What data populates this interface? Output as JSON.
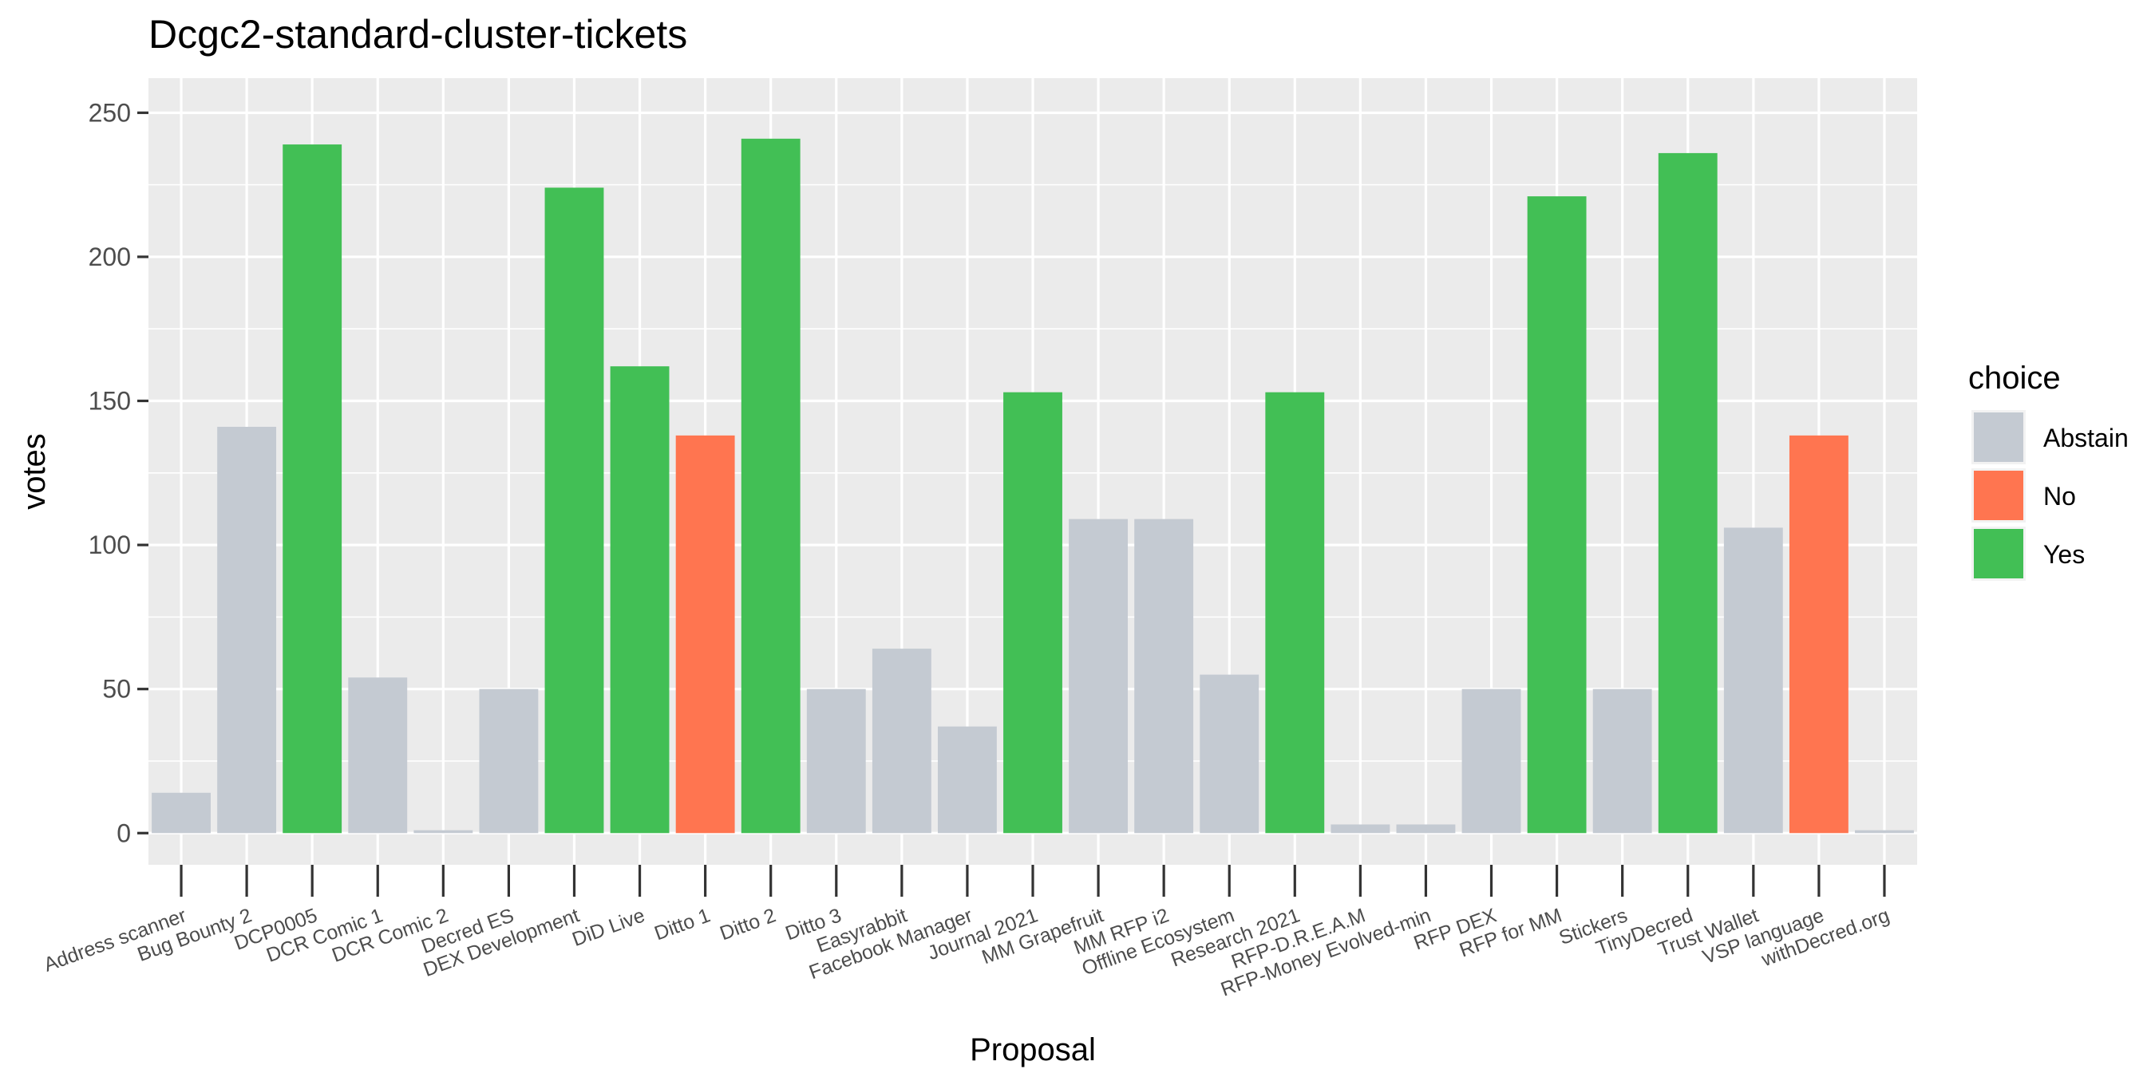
{
  "chart_data": {
    "type": "bar",
    "title": "Dcgc2-standard-cluster-tickets",
    "xlabel": "Proposal",
    "ylabel": "votes",
    "ylim": [
      -11,
      262
    ],
    "yticks": [
      0,
      50,
      100,
      150,
      200,
      250
    ],
    "grid": true,
    "legend": {
      "title": "choice",
      "position": "right",
      "entries": [
        {
          "name": "Abstain",
          "color": "#c4cad2"
        },
        {
          "name": "No",
          "color": "#ff7550"
        },
        {
          "name": "Yes",
          "color": "#42bf55"
        }
      ]
    },
    "bars": [
      {
        "category": "Address scanner",
        "value": 14,
        "choice": "Abstain"
      },
      {
        "category": "Bug Bounty 2",
        "value": 141,
        "choice": "Abstain"
      },
      {
        "category": "DCP0005",
        "value": 239,
        "choice": "Yes"
      },
      {
        "category": "DCR Comic 1",
        "value": 54,
        "choice": "Abstain"
      },
      {
        "category": "DCR Comic 2",
        "value": 1,
        "choice": "Abstain"
      },
      {
        "category": "Decred ES",
        "value": 50,
        "choice": "Abstain"
      },
      {
        "category": "DEX Development",
        "value": 224,
        "choice": "Yes"
      },
      {
        "category": "DiD Live",
        "value": 162,
        "choice": "Yes"
      },
      {
        "category": "Ditto 1",
        "value": 138,
        "choice": "No"
      },
      {
        "category": "Ditto 2",
        "value": 241,
        "choice": "Yes"
      },
      {
        "category": "Ditto 3",
        "value": 50,
        "choice": "Abstain"
      },
      {
        "category": "Easyrabbit",
        "value": 64,
        "choice": "Abstain"
      },
      {
        "category": "Facebook Manager",
        "value": 37,
        "choice": "Abstain"
      },
      {
        "category": "Journal 2021",
        "value": 153,
        "choice": "Yes"
      },
      {
        "category": "MM Grapefruit",
        "value": 109,
        "choice": "Abstain"
      },
      {
        "category": "MM RFP i2",
        "value": 109,
        "choice": "Abstain"
      },
      {
        "category": "Offline Ecosystem",
        "value": 55,
        "choice": "Abstain"
      },
      {
        "category": "Research 2021",
        "value": 153,
        "choice": "Yes"
      },
      {
        "category": "RFP-D.R.E.A.M",
        "value": 3,
        "choice": "Abstain"
      },
      {
        "category": "RFP-Money Evolved-min",
        "value": 3,
        "choice": "Abstain"
      },
      {
        "category": "RFP DEX",
        "value": 50,
        "choice": "Abstain"
      },
      {
        "category": "RFP for MM",
        "value": 221,
        "choice": "Yes"
      },
      {
        "category": "Stickers",
        "value": 50,
        "choice": "Abstain"
      },
      {
        "category": "TinyDecred",
        "value": 236,
        "choice": "Yes"
      },
      {
        "category": "Trust Wallet",
        "value": 106,
        "choice": "Abstain"
      },
      {
        "category": "VSP language",
        "value": 138,
        "choice": "No"
      },
      {
        "category": "withDecred.org",
        "value": 1,
        "choice": "Abstain"
      }
    ]
  }
}
